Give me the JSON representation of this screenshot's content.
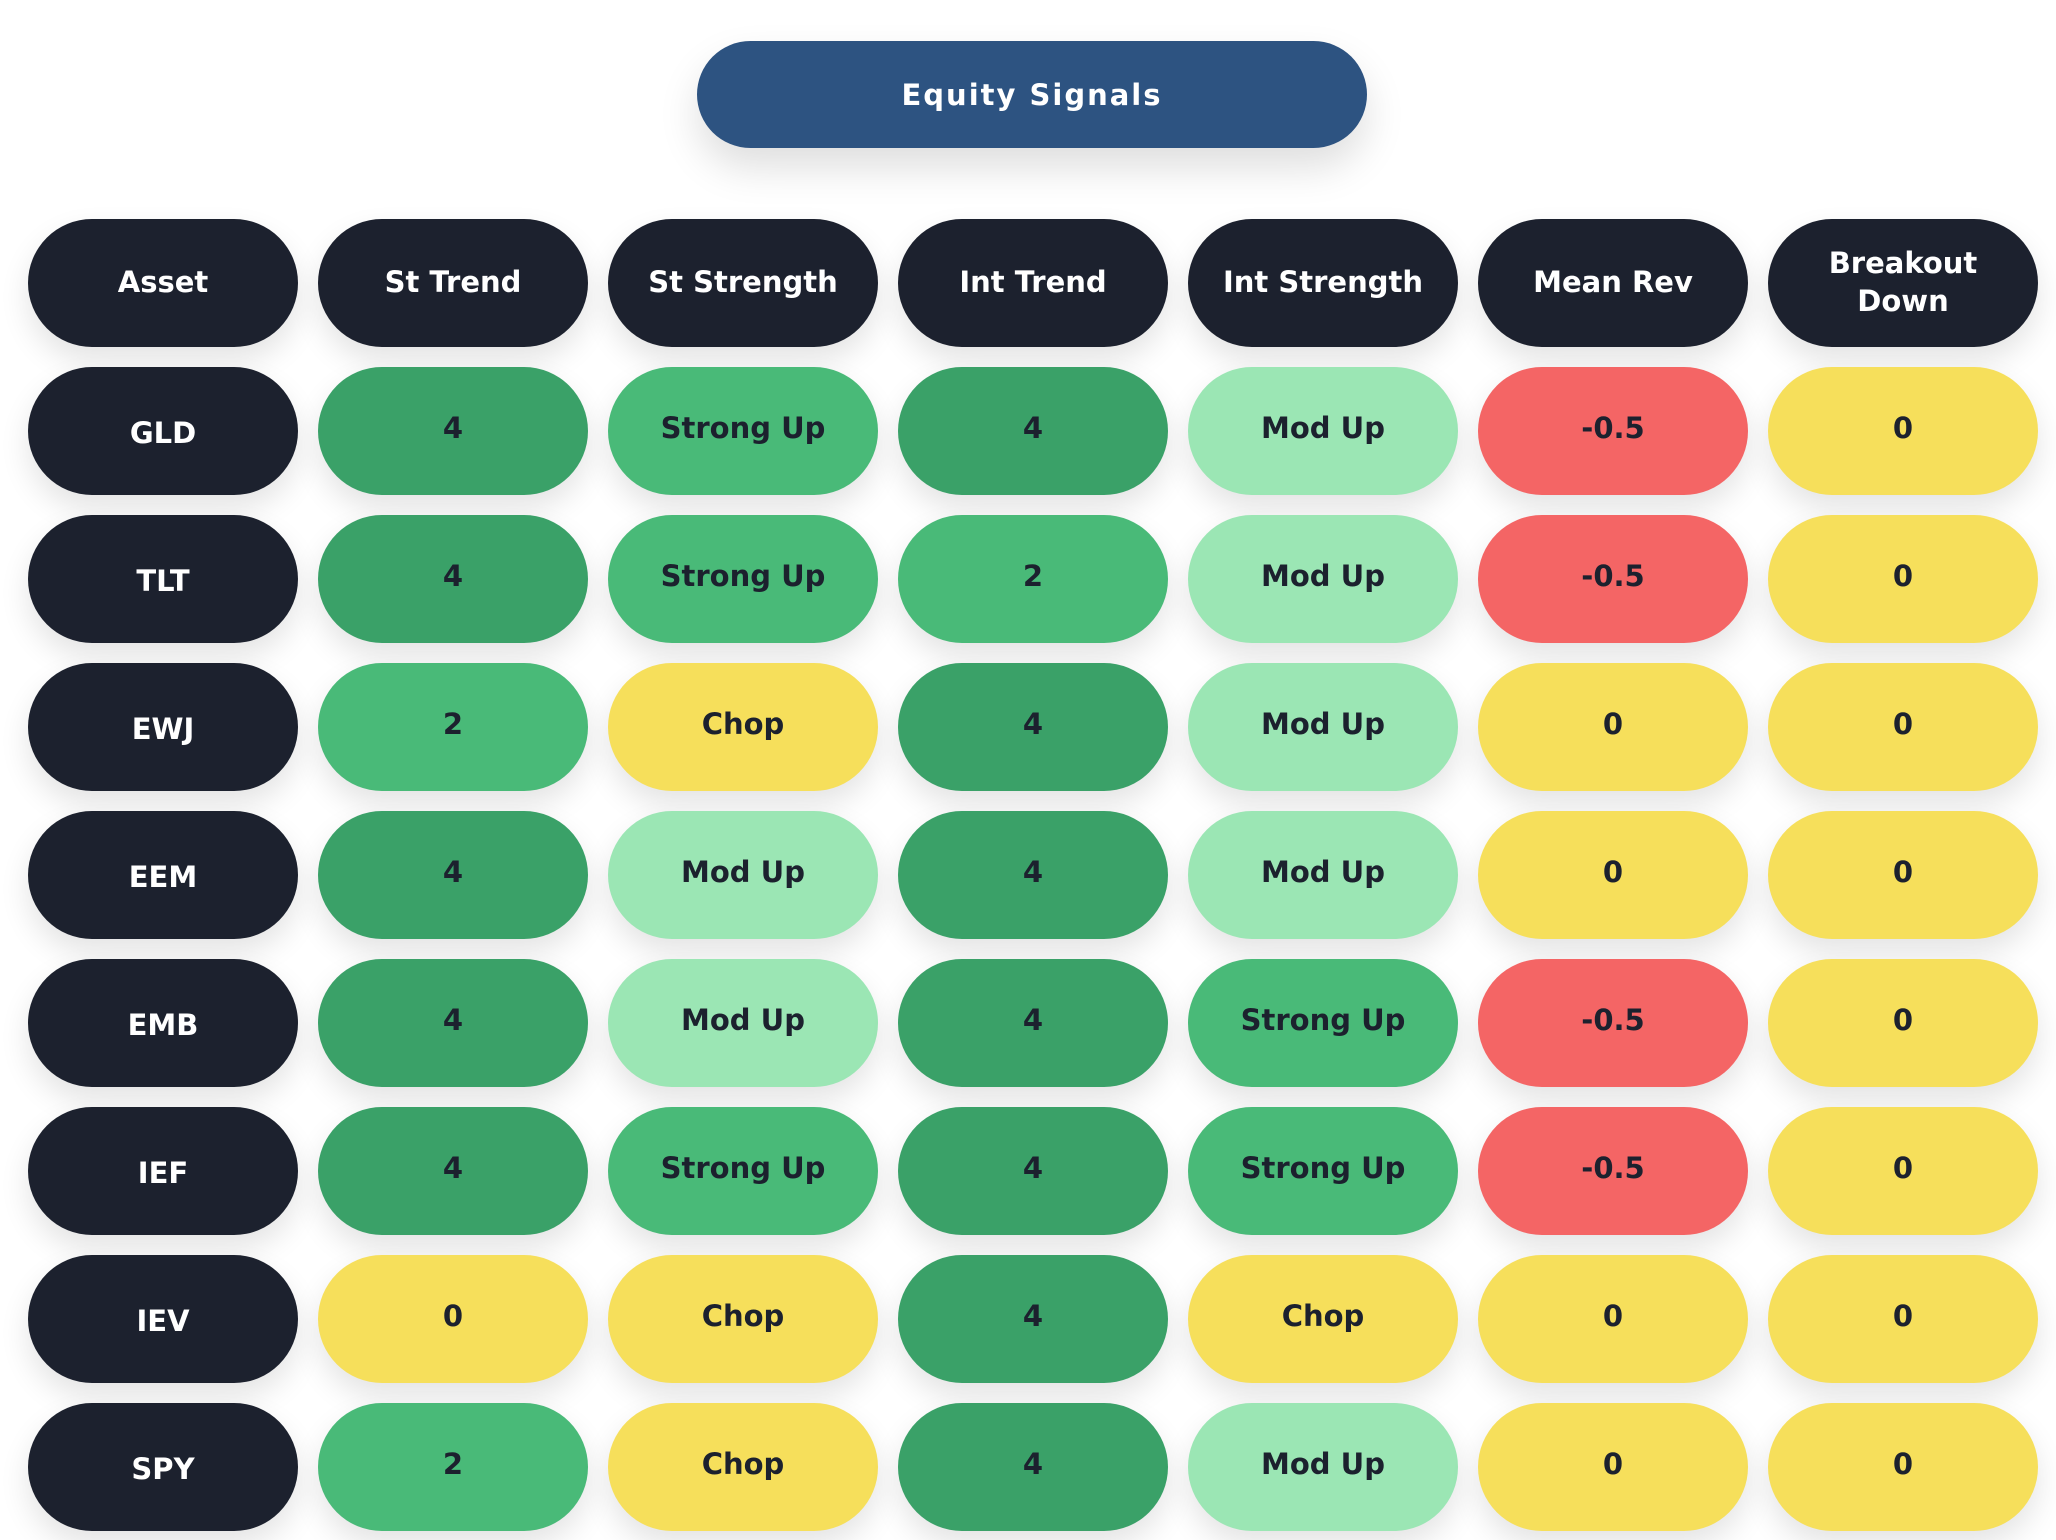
{
  "title": "Equity Signals",
  "colors": {
    "title_bg": "#2d5381",
    "dark": "#1c212e",
    "strong_green": "#3aa168",
    "green": "#49ba78",
    "light_green": "#9be6b4",
    "yellow": "#f6df5b",
    "red": "#f46565"
  },
  "headers": [
    "Asset",
    "St Trend",
    "St Strength",
    "Int Trend",
    "Int Strength",
    "Mean Rev",
    "Breakout\nDown"
  ],
  "rows": [
    {
      "asset": "GLD",
      "cells": [
        {
          "text": "4",
          "color": "#3aa168"
        },
        {
          "text": "Strong Up",
          "color": "#49ba78"
        },
        {
          "text": "4",
          "color": "#3aa168"
        },
        {
          "text": "Mod Up",
          "color": "#9be6b4"
        },
        {
          "text": "-0.5",
          "color": "#f46565"
        },
        {
          "text": "0",
          "color": "#f6df5b"
        }
      ]
    },
    {
      "asset": "TLT",
      "cells": [
        {
          "text": "4",
          "color": "#3aa168"
        },
        {
          "text": "Strong Up",
          "color": "#49ba78"
        },
        {
          "text": "2",
          "color": "#49ba78"
        },
        {
          "text": "Mod Up",
          "color": "#9be6b4"
        },
        {
          "text": "-0.5",
          "color": "#f46565"
        },
        {
          "text": "0",
          "color": "#f6df5b"
        }
      ]
    },
    {
      "asset": "EWJ",
      "cells": [
        {
          "text": "2",
          "color": "#49ba78"
        },
        {
          "text": "Chop",
          "color": "#f6df5b"
        },
        {
          "text": "4",
          "color": "#3aa168"
        },
        {
          "text": "Mod Up",
          "color": "#9be6b4"
        },
        {
          "text": "0",
          "color": "#f6df5b"
        },
        {
          "text": "0",
          "color": "#f6df5b"
        }
      ]
    },
    {
      "asset": "EEM",
      "cells": [
        {
          "text": "4",
          "color": "#3aa168"
        },
        {
          "text": "Mod Up",
          "color": "#9be6b4"
        },
        {
          "text": "4",
          "color": "#3aa168"
        },
        {
          "text": "Mod Up",
          "color": "#9be6b4"
        },
        {
          "text": "0",
          "color": "#f6df5b"
        },
        {
          "text": "0",
          "color": "#f6df5b"
        }
      ]
    },
    {
      "asset": "EMB",
      "cells": [
        {
          "text": "4",
          "color": "#3aa168"
        },
        {
          "text": "Mod Up",
          "color": "#9be6b4"
        },
        {
          "text": "4",
          "color": "#3aa168"
        },
        {
          "text": "Strong Up",
          "color": "#49ba78"
        },
        {
          "text": "-0.5",
          "color": "#f46565"
        },
        {
          "text": "0",
          "color": "#f6df5b"
        }
      ]
    },
    {
      "asset": "IEF",
      "cells": [
        {
          "text": "4",
          "color": "#3aa168"
        },
        {
          "text": "Strong Up",
          "color": "#49ba78"
        },
        {
          "text": "4",
          "color": "#3aa168"
        },
        {
          "text": "Strong Up",
          "color": "#49ba78"
        },
        {
          "text": "-0.5",
          "color": "#f46565"
        },
        {
          "text": "0",
          "color": "#f6df5b"
        }
      ]
    },
    {
      "asset": "IEV",
      "cells": [
        {
          "text": "0",
          "color": "#f6df5b"
        },
        {
          "text": "Chop",
          "color": "#f6df5b"
        },
        {
          "text": "4",
          "color": "#3aa168"
        },
        {
          "text": "Chop",
          "color": "#f6df5b"
        },
        {
          "text": "0",
          "color": "#f6df5b"
        },
        {
          "text": "0",
          "color": "#f6df5b"
        }
      ]
    },
    {
      "asset": "SPY",
      "cells": [
        {
          "text": "2",
          "color": "#49ba78"
        },
        {
          "text": "Chop",
          "color": "#f6df5b"
        },
        {
          "text": "4",
          "color": "#3aa168"
        },
        {
          "text": "Mod Up",
          "color": "#9be6b4"
        },
        {
          "text": "0",
          "color": "#f6df5b"
        },
        {
          "text": "0",
          "color": "#f6df5b"
        }
      ]
    }
  ]
}
